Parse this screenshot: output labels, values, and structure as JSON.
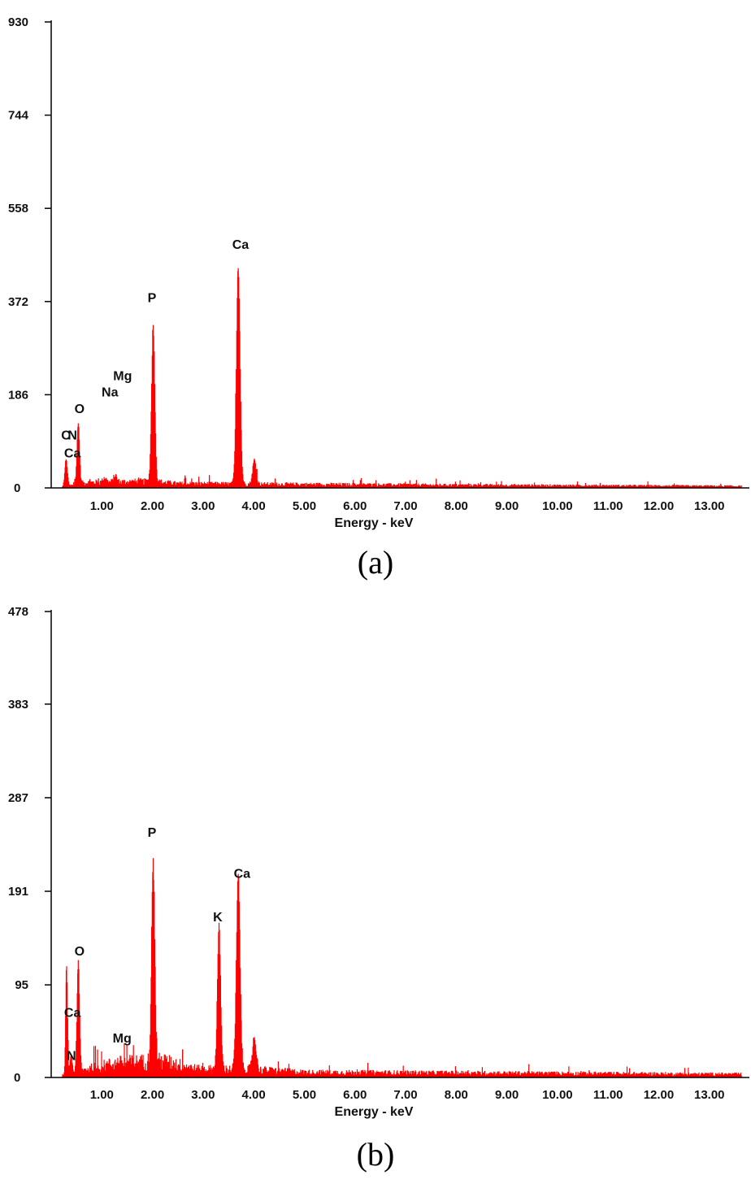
{
  "chart_data": [
    {
      "type": "bar",
      "caption": "(a)",
      "xlabel": "Energy - keV",
      "ylabel": "",
      "xlim": [
        0,
        13.63
      ],
      "ylim": [
        0,
        930
      ],
      "yticks": [
        "0",
        "186",
        "372",
        "558",
        "744",
        "930"
      ],
      "ytick_values": [
        0,
        186,
        372,
        558,
        744,
        930
      ],
      "xticks": [
        "1.00",
        "2.00",
        "3.00",
        "4.00",
        "5.00",
        "6.00",
        "7.00",
        "8.00",
        "9.00",
        "10.00",
        "11.00",
        "12.00",
        "13.00"
      ],
      "xtick_values": [
        1,
        2,
        3,
        4,
        5,
        6,
        7,
        8,
        9,
        10,
        11,
        12,
        13
      ],
      "color": "#ff0000",
      "peaks": [
        {
          "element": "C/Ca",
          "energy": 0.29,
          "counts": 54,
          "width": 0.025
        },
        {
          "element": "O",
          "energy": 0.53,
          "counts": 122,
          "width": 0.025
        },
        {
          "element": "Na",
          "energy": 1.05,
          "counts": 10,
          "width": 0.03
        },
        {
          "element": "Mg",
          "energy": 1.26,
          "counts": 14,
          "width": 0.03
        },
        {
          "element": "P",
          "energy": 2.01,
          "counts": 313,
          "width": 0.032
        },
        {
          "element": "Ca",
          "energy": 3.69,
          "counts": 433,
          "width": 0.036
        },
        {
          "element": "Ca",
          "energy": 4.01,
          "counts": 49,
          "width": 0.035
        }
      ],
      "background": [
        [
          0.25,
          2
        ],
        [
          0.7,
          10
        ],
        [
          2.0,
          12
        ],
        [
          2.5,
          8
        ],
        [
          4.0,
          7
        ],
        [
          8.0,
          5
        ],
        [
          13.6,
          3
        ]
      ],
      "labels": [
        {
          "text": "Ca",
          "energy": 3.74,
          "counts": 487
        },
        {
          "text": "P",
          "energy": 1.99,
          "counts": 381
        },
        {
          "text": "Mg",
          "energy": 1.41,
          "counts": 225
        },
        {
          "text": "Na",
          "energy": 1.16,
          "counts": 192
        },
        {
          "text": "O",
          "energy": 0.56,
          "counts": 159
        },
        {
          "text": "C",
          "energy": 0.29,
          "counts": 106
        },
        {
          "text": "N",
          "energy": 0.42,
          "counts": 106
        },
        {
          "text": "Ca",
          "energy": 0.42,
          "counts": 71
        }
      ]
    },
    {
      "type": "bar",
      "caption": "(b)",
      "xlabel": "Energy - keV",
      "ylabel": "",
      "xlim": [
        0,
        13.63
      ],
      "ylim": [
        0,
        478
      ],
      "yticks": [
        "0",
        "95",
        "191",
        "287",
        "383",
        "478"
      ],
      "ytick_values": [
        0,
        95,
        191,
        287,
        383,
        478
      ],
      "xticks": [
        "1.00",
        "2.00",
        "3.00",
        "4.00",
        "5.00",
        "6.00",
        "7.00",
        "8.00",
        "9.00",
        "10.00",
        "11.00",
        "12.00",
        "13.00"
      ],
      "xtick_values": [
        1,
        2,
        3,
        4,
        5,
        6,
        7,
        8,
        9,
        10,
        11,
        12,
        13
      ],
      "color": "#ff0000",
      "peaks": [
        {
          "element": "Ca",
          "energy": 0.3,
          "counts": 110,
          "width": 0.018
        },
        {
          "element": "N",
          "energy": 0.39,
          "counts": 20,
          "width": 0.02
        },
        {
          "element": "O",
          "energy": 0.53,
          "counts": 111,
          "width": 0.025
        },
        {
          "element": "P",
          "energy": 2.01,
          "counts": 204,
          "width": 0.032
        },
        {
          "element": "K",
          "energy": 3.31,
          "counts": 146,
          "width": 0.032
        },
        {
          "element": "Ca",
          "energy": 3.69,
          "counts": 200,
          "width": 0.036
        },
        {
          "element": "Ca",
          "energy": 4.01,
          "counts": 33,
          "width": 0.035
        }
      ],
      "background": [
        [
          0.25,
          2
        ],
        [
          0.7,
          8
        ],
        [
          1.3,
          14
        ],
        [
          2.2,
          16
        ],
        [
          2.9,
          8
        ],
        [
          3.9,
          8
        ],
        [
          5.0,
          5
        ],
        [
          13.6,
          3
        ]
      ],
      "labels": [
        {
          "text": "P",
          "energy": 1.99,
          "counts": 252
        },
        {
          "text": "Ca",
          "energy": 3.77,
          "counts": 210
        },
        {
          "text": "K",
          "energy": 3.29,
          "counts": 165
        },
        {
          "text": "O",
          "energy": 0.56,
          "counts": 130
        },
        {
          "text": "Ca",
          "energy": 0.42,
          "counts": 67
        },
        {
          "text": "Mg",
          "energy": 1.4,
          "counts": 41
        },
        {
          "text": "N",
          "energy": 0.4,
          "counts": 23
        }
      ]
    }
  ]
}
